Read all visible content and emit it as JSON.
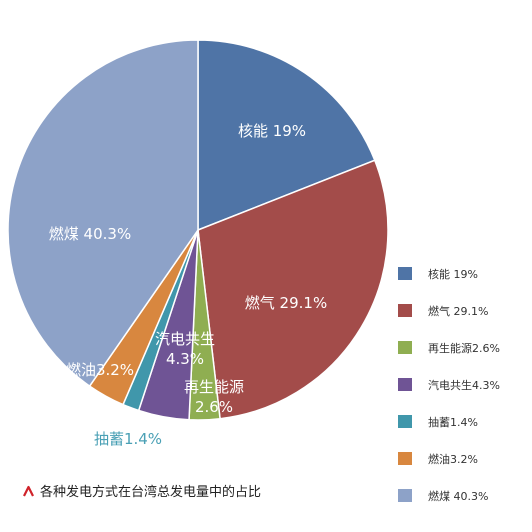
{
  "chart_data": {
    "type": "pie",
    "title": "",
    "caption": "各种发电方式在台湾总发电量中的占比",
    "slices": [
      {
        "name": "核能",
        "value": 19.0,
        "color": "#4f74a6",
        "slice_label": "核能 19%",
        "legend_label": "核能 19%"
      },
      {
        "name": "燃气",
        "value": 29.1,
        "color": "#a34c4a",
        "slice_label": "燃气 29.1%",
        "legend_label": "燃气 29.1%"
      },
      {
        "name": "再生能源",
        "value": 2.6,
        "color": "#8fae51",
        "slice_label": [
          "再生能源",
          "2.6%"
        ],
        "legend_label": "再生能源2.6%"
      },
      {
        "name": "汽电共生",
        "value": 4.3,
        "color": "#6f5495",
        "slice_label": [
          "汽电共生",
          "4.3%"
        ],
        "legend_label": "汽电共生4.3%"
      },
      {
        "name": "抽蓄",
        "value": 1.4,
        "color": "#4097ab",
        "slice_label": "抽蓄1.4%",
        "legend_label": "抽蓄1.4%"
      },
      {
        "name": "燃油",
        "value": 3.2,
        "color": "#d8873f",
        "slice_label": "燃油3.2%",
        "legend_label": "燃油3.2%"
      },
      {
        "name": "燃煤",
        "value": 40.3,
        "color": "#8da2c8",
        "slice_label": "燃煤 40.3%",
        "legend_label": "燃煤 40.3%"
      }
    ],
    "legend_position": "right",
    "caption_marker_color": "#d0232a"
  }
}
